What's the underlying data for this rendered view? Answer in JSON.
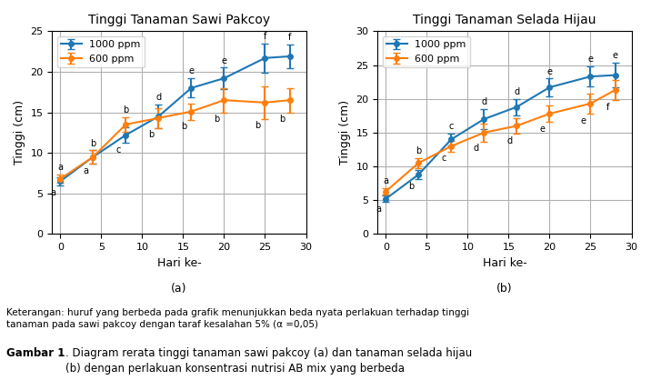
{
  "chart_data": [
    {
      "type": "line",
      "title": "Tinggi Tanaman Sawi Pakcoy",
      "caption": "(a)",
      "xlabel": "Hari ke-",
      "ylabel": "Tinggi (cm)",
      "x": [
        0,
        4,
        8,
        12,
        16,
        20,
        25,
        28
      ],
      "series": [
        {
          "name": "1000 ppm",
          "values": [
            6.5,
            9.5,
            12.2,
            14.5,
            18.0,
            19.2,
            21.7,
            21.9
          ],
          "errors": [
            0.5,
            0.8,
            1.0,
            1.5,
            1.2,
            1.3,
            1.8,
            1.5
          ],
          "labels": [
            "a",
            "b",
            "c",
            "d",
            "e",
            "e",
            "f",
            "f"
          ]
        },
        {
          "name": "600 ppm",
          "values": [
            6.8,
            9.5,
            13.5,
            14.3,
            15.1,
            16.5,
            16.2,
            16.5
          ],
          "errors": [
            0.5,
            0.8,
            0.9,
            1.2,
            1.0,
            1.5,
            2.0,
            1.5
          ],
          "labels": [
            "a",
            "a",
            "b",
            "b",
            "b",
            "b",
            "b",
            "b"
          ]
        }
      ],
      "xlim": [
        -1,
        30
      ],
      "xticks": [
        0,
        5,
        10,
        15,
        20,
        25,
        30
      ],
      "ylim": [
        0,
        25
      ],
      "yticks": [
        0,
        5,
        10,
        15,
        20,
        25
      ],
      "grid": true,
      "legend": "upper left",
      "marker": "o"
    },
    {
      "type": "line",
      "title": "Tinggi Tanaman Selada Hijau",
      "caption": "(b)",
      "xlabel": "Hari ke-",
      "ylabel": "Tinggi (cm)",
      "x": [
        0,
        4,
        8,
        12,
        16,
        20,
        25,
        28
      ],
      "series": [
        {
          "name": "1000 ppm",
          "values": [
            5.2,
            8.8,
            14.0,
            17.0,
            18.8,
            21.7,
            23.3,
            23.5
          ],
          "errors": [
            0.5,
            0.7,
            0.9,
            1.5,
            1.2,
            1.3,
            1.5,
            1.8
          ],
          "labels": [
            "a",
            "b",
            "c",
            "d",
            "d",
            "e",
            "e",
            "e"
          ]
        },
        {
          "name": "600 ppm",
          "values": [
            6.3,
            10.5,
            13.0,
            15.0,
            16.0,
            17.8,
            19.3,
            21.3
          ],
          "errors": [
            0.5,
            0.7,
            0.8,
            1.3,
            1.2,
            1.2,
            1.5,
            1.5
          ],
          "labels": [
            "a",
            "b",
            "c",
            "d",
            "d",
            "e",
            "e",
            "f"
          ]
        }
      ],
      "xlim": [
        -1,
        30
      ],
      "xticks": [
        0,
        5,
        10,
        15,
        20,
        25,
        30
      ],
      "ylim": [
        0,
        30
      ],
      "yticks": [
        0,
        5,
        10,
        15,
        20,
        25,
        30
      ],
      "grid": true,
      "legend": "upper left",
      "marker": "o"
    }
  ],
  "notes": [
    "Keterangan: huruf yang berbeda pada grafik menunjukkan beda nyata perlakuan terhadap tinggi\ntanaman pada sawi pakcoy dengan taraf kesalahan 5% (α =0,05)"
  ],
  "figure_caption": {
    "label": "Gambar 1",
    "text": ". Diagram rerata tinggi tanaman sawi pakcoy (a) dan tanaman selada hijau\n(b) dengan perlakuan konsentrasi nutrisi AB mix yang berbeda"
  }
}
